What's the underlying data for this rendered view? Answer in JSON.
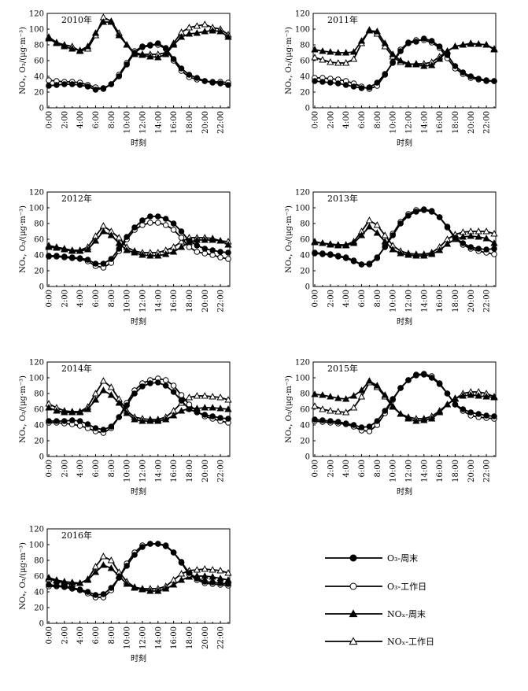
{
  "x_labels": [
    "0:00",
    "2:00",
    "4:00",
    "6:00",
    "8:00",
    "10:00",
    "12:00",
    "14:00",
    "16:00",
    "18:00",
    "20:00",
    "22:00"
  ],
  "y_ticks": [
    "0",
    "20",
    "40",
    "60",
    "80",
    "100",
    "120"
  ],
  "x_axis_title": "时刻",
  "y_axis_title": "NOₓ, O₃/(μg·m⁻³)",
  "legend": [
    {
      "name": "O₃-周末",
      "marker": "circle",
      "fill": "#000000"
    },
    {
      "name": "O₃-工作日",
      "marker": "circle",
      "fill": "#ffffff"
    },
    {
      "name": "NOₓ-周末",
      "marker": "triangle",
      "fill": "#000000"
    },
    {
      "name": "NOₓ-工作日",
      "marker": "triangle",
      "fill": "#ffffff"
    }
  ],
  "chart_data": [
    {
      "type": "line",
      "title": "2010年",
      "xlabel": "时刻",
      "ylabel": "NOₓ, O₃/(μg·m⁻³)",
      "ylim": [
        0,
        120
      ],
      "x": [
        0,
        1,
        2,
        3,
        4,
        5,
        6,
        7,
        8,
        9,
        10,
        11,
        12,
        13,
        14,
        15,
        16,
        17,
        18,
        19,
        20,
        21,
        22,
        23
      ],
      "series": [
        {
          "name": "O₃-周末",
          "values": [
            28,
            29,
            30,
            30,
            29,
            27,
            23,
            25,
            30,
            40,
            55,
            70,
            77,
            79,
            82,
            76,
            62,
            50,
            42,
            38,
            34,
            32,
            31,
            29
          ]
        },
        {
          "name": "O₃-工作日",
          "values": [
            35,
            34,
            33,
            33,
            32,
            29,
            26,
            24,
            30,
            42,
            57,
            72,
            78,
            80,
            80,
            75,
            60,
            47,
            39,
            36,
            34,
            33,
            33,
            32
          ]
        },
        {
          "name": "NOₓ-周末",
          "values": [
            88,
            82,
            78,
            75,
            73,
            78,
            95,
            109,
            109,
            92,
            80,
            68,
            67,
            65,
            64,
            68,
            80,
            90,
            94,
            95,
            97,
            98,
            97,
            90
          ]
        },
        {
          "name": "NOₓ-工作日",
          "values": [
            90,
            83,
            80,
            78,
            72,
            75,
            92,
            115,
            110,
            95,
            80,
            70,
            68,
            68,
            68,
            70,
            82,
            96,
            102,
            104,
            106,
            102,
            100,
            93
          ]
        }
      ]
    },
    {
      "type": "line",
      "title": "2011年",
      "xlabel": "时刻",
      "ylabel": "NOₓ, O₃/(μg·m⁻³)",
      "ylim": [
        0,
        120
      ],
      "x": [
        0,
        1,
        2,
        3,
        4,
        5,
        6,
        7,
        8,
        9,
        10,
        11,
        12,
        13,
        14,
        15,
        16,
        17,
        18,
        19,
        20,
        21,
        22,
        23
      ],
      "series": [
        {
          "name": "O₃-周末",
          "values": [
            34,
            33,
            32,
            31,
            29,
            27,
            25,
            26,
            32,
            43,
            57,
            72,
            82,
            84,
            88,
            85,
            78,
            67,
            53,
            45,
            40,
            37,
            35,
            34
          ]
        },
        {
          "name": "O₃-工作日",
          "values": [
            38,
            38,
            37,
            36,
            34,
            31,
            27,
            24,
            28,
            42,
            58,
            74,
            83,
            86,
            86,
            83,
            76,
            63,
            50,
            43,
            38,
            36,
            34,
            34
          ]
        },
        {
          "name": "NOₓ-周末",
          "values": [
            74,
            72,
            71,
            70,
            70,
            71,
            85,
            98,
            97,
            82,
            68,
            60,
            56,
            55,
            53,
            54,
            62,
            72,
            78,
            80,
            82,
            81,
            80,
            75
          ]
        },
        {
          "name": "NOₓ-工作日",
          "values": [
            64,
            61,
            58,
            57,
            57,
            62,
            82,
            99,
            94,
            78,
            65,
            58,
            55,
            56,
            56,
            58,
            65,
            72,
            78,
            80,
            81,
            81,
            80,
            74
          ]
        }
      ]
    },
    {
      "type": "line",
      "title": "2012年",
      "xlabel": "时刻",
      "ylabel": "NOₓ, O₃/(μg·m⁻³)",
      "ylim": [
        0,
        120
      ],
      "x": [
        0,
        1,
        2,
        3,
        4,
        5,
        6,
        7,
        8,
        9,
        10,
        11,
        12,
        13,
        14,
        15,
        16,
        17,
        18,
        19,
        20,
        21,
        22,
        23
      ],
      "series": [
        {
          "name": "O₃-周末",
          "values": [
            39,
            39,
            38,
            37,
            36,
            34,
            29,
            29,
            35,
            48,
            63,
            75,
            84,
            89,
            89,
            86,
            80,
            70,
            58,
            52,
            48,
            46,
            44,
            43
          ]
        },
        {
          "name": "O₃-工作日",
          "values": [
            38,
            38,
            37,
            36,
            35,
            32,
            26,
            24,
            30,
            45,
            60,
            72,
            78,
            81,
            81,
            78,
            72,
            62,
            50,
            44,
            42,
            40,
            37,
            35
          ]
        },
        {
          "name": "NOₓ-周末",
          "values": [
            50,
            49,
            47,
            45,
            45,
            47,
            58,
            70,
            65,
            55,
            46,
            43,
            40,
            39,
            39,
            41,
            44,
            50,
            56,
            59,
            59,
            59,
            58,
            53
          ]
        },
        {
          "name": "NOₓ-工作日",
          "values": [
            52,
            50,
            48,
            46,
            46,
            50,
            64,
            77,
            70,
            62,
            50,
            45,
            43,
            43,
            43,
            46,
            50,
            57,
            62,
            62,
            62,
            61,
            58,
            57
          ]
        }
      ]
    },
    {
      "type": "line",
      "title": "2013年",
      "xlabel": "时刻",
      "ylabel": "NOₓ, O₃/(μg·m⁻³)",
      "ylim": [
        0,
        120
      ],
      "x": [
        0,
        1,
        2,
        3,
        4,
        5,
        6,
        7,
        8,
        9,
        10,
        11,
        12,
        13,
        14,
        15,
        16,
        17,
        18,
        19,
        20,
        21,
        22,
        23
      ],
      "series": [
        {
          "name": "O₃-周末",
          "values": [
            42,
            41,
            40,
            38,
            36,
            32,
            28,
            29,
            37,
            50,
            65,
            80,
            90,
            95,
            97,
            95,
            88,
            76,
            62,
            55,
            50,
            48,
            47,
            48
          ]
        },
        {
          "name": "O₃-工作日",
          "values": [
            43,
            42,
            41,
            39,
            37,
            33,
            28,
            28,
            36,
            51,
            67,
            82,
            92,
            97,
            98,
            96,
            88,
            75,
            61,
            53,
            48,
            45,
            43,
            41
          ]
        },
        {
          "name": "NOₓ-周末",
          "values": [
            56,
            55,
            53,
            52,
            52,
            55,
            65,
            76,
            68,
            57,
            47,
            42,
            40,
            39,
            39,
            41,
            46,
            54,
            60,
            63,
            64,
            63,
            61,
            55
          ]
        },
        {
          "name": "NOₓ-工作日",
          "values": [
            57,
            55,
            54,
            53,
            53,
            57,
            70,
            84,
            78,
            65,
            52,
            45,
            42,
            41,
            41,
            43,
            50,
            60,
            66,
            69,
            70,
            70,
            70,
            67
          ]
        }
      ]
    },
    {
      "type": "line",
      "title": "2014年",
      "xlabel": "时刻",
      "ylabel": "NOₓ, O₃/(μg·m⁻³)",
      "ylim": [
        0,
        120
      ],
      "x": [
        0,
        1,
        2,
        3,
        4,
        5,
        6,
        7,
        8,
        9,
        10,
        11,
        12,
        13,
        14,
        15,
        16,
        17,
        18,
        19,
        20,
        21,
        22,
        23
      ],
      "series": [
        {
          "name": "O₃-周末",
          "values": [
            45,
            45,
            45,
            46,
            45,
            41,
            36,
            34,
            38,
            50,
            65,
            80,
            89,
            93,
            94,
            90,
            82,
            71,
            60,
            56,
            53,
            51,
            49,
            48
          ]
        },
        {
          "name": "O₃-工作日",
          "values": [
            43,
            43,
            42,
            41,
            39,
            36,
            32,
            30,
            36,
            50,
            68,
            84,
            93,
            97,
            99,
            97,
            90,
            78,
            66,
            57,
            51,
            48,
            45,
            43
          ]
        },
        {
          "name": "NOₓ-周末",
          "values": [
            62,
            58,
            56,
            56,
            56,
            60,
            72,
            84,
            78,
            68,
            55,
            47,
            45,
            45,
            45,
            47,
            52,
            58,
            61,
            61,
            62,
            62,
            61,
            60
          ]
        },
        {
          "name": "NOₓ-工作日",
          "values": [
            67,
            62,
            58,
            57,
            57,
            63,
            80,
            96,
            88,
            73,
            58,
            50,
            48,
            47,
            47,
            50,
            58,
            68,
            75,
            77,
            77,
            76,
            75,
            72
          ]
        }
      ]
    },
    {
      "type": "line",
      "title": "2015年",
      "xlabel": "时刻",
      "ylabel": "NOₓ, O₃/(μg·m⁻³)",
      "ylim": [
        0,
        120
      ],
      "x": [
        0,
        1,
        2,
        3,
        4,
        5,
        6,
        7,
        8,
        9,
        10,
        11,
        12,
        13,
        14,
        15,
        16,
        17,
        18,
        19,
        20,
        21,
        22,
        23
      ],
      "series": [
        {
          "name": "O₃-周末",
          "values": [
            47,
            46,
            45,
            44,
            42,
            40,
            37,
            38,
            45,
            58,
            73,
            87,
            97,
            103,
            104,
            100,
            92,
            80,
            66,
            60,
            56,
            54,
            52,
            51
          ]
        },
        {
          "name": "O₃-工作日",
          "values": [
            45,
            44,
            43,
            42,
            41,
            38,
            33,
            32,
            40,
            55,
            72,
            87,
            97,
            104,
            105,
            102,
            93,
            80,
            66,
            58,
            52,
            50,
            49,
            48
          ]
        },
        {
          "name": "NOₓ-周末",
          "values": [
            79,
            78,
            76,
            74,
            73,
            77,
            84,
            96,
            90,
            78,
            64,
            54,
            48,
            45,
            46,
            48,
            56,
            66,
            74,
            77,
            78,
            77,
            76,
            75
          ]
        },
        {
          "name": "NOₓ-工作日",
          "values": [
            64,
            60,
            58,
            57,
            56,
            62,
            76,
            94,
            88,
            76,
            63,
            54,
            50,
            48,
            48,
            51,
            58,
            66,
            73,
            80,
            82,
            82,
            80,
            76
          ]
        }
      ]
    },
    {
      "type": "line",
      "title": "2016年",
      "xlabel": "时刻",
      "ylabel": "NOₓ, O₃/(μg·m⁻³)",
      "ylim": [
        0,
        120
      ],
      "x": [
        0,
        1,
        2,
        3,
        4,
        5,
        6,
        7,
        8,
        9,
        10,
        11,
        12,
        13,
        14,
        15,
        16,
        17,
        18,
        19,
        20,
        21,
        22,
        23
      ],
      "series": [
        {
          "name": "O₃-周末",
          "values": [
            49,
            48,
            47,
            45,
            43,
            40,
            36,
            37,
            45,
            58,
            73,
            87,
            97,
            101,
            101,
            98,
            90,
            78,
            64,
            57,
            53,
            52,
            51,
            50
          ]
        },
        {
          "name": "O₃-工作日",
          "values": [
            47,
            47,
            46,
            44,
            42,
            38,
            33,
            33,
            42,
            58,
            76,
            90,
            99,
            101,
            101,
            99,
            90,
            77,
            62,
            55,
            51,
            50,
            49,
            48
          ]
        },
        {
          "name": "NOₓ-周末",
          "values": [
            58,
            55,
            53,
            52,
            51,
            55,
            65,
            74,
            70,
            60,
            50,
            45,
            43,
            41,
            41,
            44,
            49,
            55,
            59,
            60,
            60,
            59,
            57,
            55
          ]
        },
        {
          "name": "NOₓ-工作日",
          "values": [
            56,
            54,
            51,
            50,
            51,
            56,
            72,
            85,
            80,
            65,
            53,
            46,
            44,
            44,
            44,
            47,
            55,
            63,
            67,
            68,
            69,
            68,
            67,
            64
          ]
        }
      ]
    }
  ]
}
